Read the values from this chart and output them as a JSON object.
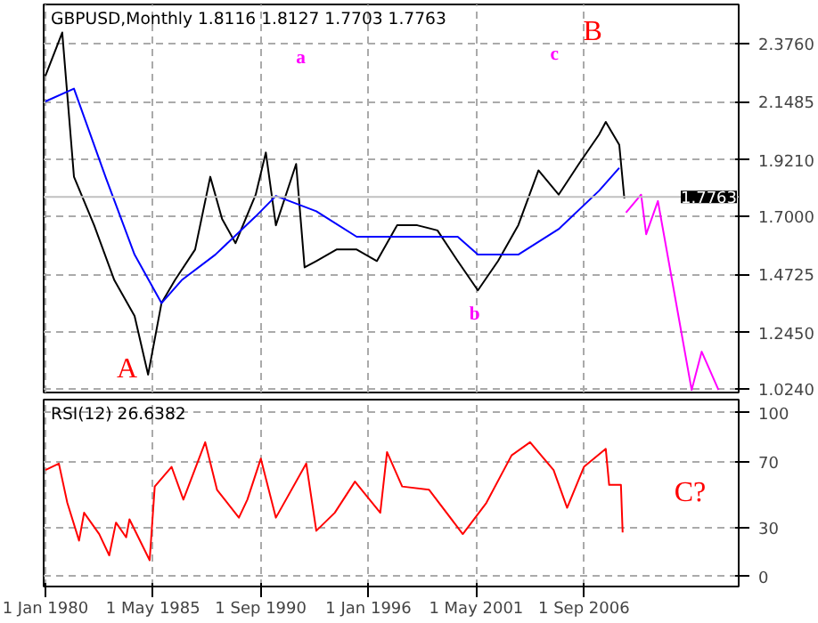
{
  "chart_data": [
    {
      "type": "line",
      "title": "GBPUSD,Monthly  1.8116 1.8127 1.7703 1.7763",
      "x": [
        "1980-01",
        "1980-11",
        "1981-06",
        "1982-06",
        "1983-06",
        "1984-06",
        "1985-02",
        "1985-10",
        "1986-06",
        "1987-06",
        "1988-03",
        "1988-10",
        "1989-06",
        "1990-06",
        "1990-12",
        "1991-06",
        "1992-06",
        "1992-11",
        "1993-06",
        "1994-06",
        "1995-06",
        "1996-06",
        "1997-06",
        "1998-06",
        "1999-06",
        "2000-06",
        "2001-06",
        "2002-06",
        "2003-06",
        "2004-06",
        "2005-06",
        "2006-06",
        "2007-06",
        "2007-10",
        "2008-06",
        "2008-09"
      ],
      "series": [
        {
          "color": "#000000",
          "values": [
            2.25,
            2.42,
            1.855,
            1.665,
            1.45,
            1.31,
            1.08,
            1.36,
            1.45,
            1.57,
            1.855,
            1.69,
            1.595,
            1.785,
            1.95,
            1.665,
            1.905,
            1.5,
            1.525,
            1.57,
            1.57,
            1.525,
            1.665,
            1.665,
            1.645,
            1.525,
            1.41,
            1.525,
            1.665,
            1.88,
            1.785,
            1.905,
            2.02,
            2.07,
            1.98,
            1.77
          ]
        },
        {
          "color": "#0000ff",
          "x": [
            "1980-01",
            "1981-06",
            "1983-01",
            "1984-06",
            "1985-10",
            "1986-10",
            "1988-06",
            "1990-06",
            "1991-06",
            "1993-06",
            "1995-06",
            "1998-06",
            "2000-06",
            "2001-06",
            "2003-06",
            "2005-06",
            "2007-06",
            "2008-06"
          ],
          "values": [
            2.15,
            2.2,
            1.85,
            1.55,
            1.36,
            1.45,
            1.55,
            1.7,
            1.78,
            1.72,
            1.62,
            1.62,
            1.62,
            1.55,
            1.55,
            1.65,
            1.8,
            1.89
          ]
        },
        {
          "color": "#ff00ff",
          "x": [
            "2008-10",
            "2009-07",
            "2009-10",
            "2010-05",
            "2012-01",
            "2012-07",
            "2013-05"
          ],
          "values": [
            1.715,
            1.785,
            1.63,
            1.76,
            1.02,
            1.17,
            1.02
          ]
        }
      ],
      "xlim": [
        "1979-12",
        "2014-05"
      ],
      "xticks": [
        {
          "value": "1980-01-01",
          "label": null
        },
        {
          "value": "1985-05-01",
          "label": null
        },
        {
          "value": "1990-09-01",
          "label": null
        },
        {
          "value": "1996-01-01",
          "label": null
        },
        {
          "value": "2001-05-01",
          "label": null
        },
        {
          "value": "2006-09-01",
          "label": null
        }
      ],
      "ylim": [
        1.01,
        2.53
      ],
      "yticks": [
        {
          "value": 1.024,
          "label": "1.0240"
        },
        {
          "value": 1.245,
          "label": "1.2450"
        },
        {
          "value": 1.4725,
          "label": "1.4725"
        },
        {
          "value": 1.7,
          "label": "1.7000"
        },
        {
          "value": 1.921,
          "label": "1.9210"
        },
        {
          "value": 2.1485,
          "label": "2.1485"
        },
        {
          "value": 2.376,
          "label": "2.3760"
        }
      ],
      "ref_lines": [
        {
          "axis": "y",
          "value": 1.7763,
          "label": "1.7763",
          "color": "#c0c0c0"
        }
      ],
      "annotations": [
        "A",
        "a",
        "b",
        "B",
        "c"
      ],
      "grid": true,
      "tick_labels": "y"
    },
    {
      "type": "line",
      "title": "RSI(12) 26.6382",
      "x": [
        "1980-01",
        "1980-09",
        "1981-02",
        "1981-09",
        "1981-12",
        "1982-09",
        "1983-03",
        "1983-07",
        "1984-01",
        "1984-03",
        "1985-03",
        "1985-06",
        "1986-04",
        "1986-11",
        "1987-12",
        "1988-07",
        "1989-08",
        "1990-01",
        "1990-09",
        "1991-06",
        "1992-12",
        "1993-06",
        "1994-05",
        "1995-05",
        "1996-08",
        "1996-12",
        "1997-09",
        "1999-01",
        "2000-09",
        "2001-11",
        "2003-02",
        "2004-01",
        "2005-03",
        "2005-11",
        "2006-09",
        "2007-10",
        "2007-12",
        "2008-07",
        "2008-08"
      ],
      "series": [
        {
          "color": "#ff0000",
          "values": [
            65,
            69,
            45,
            22,
            39,
            26,
            13,
            33,
            24,
            35,
            10,
            55,
            67,
            47,
            82,
            53,
            36,
            47,
            72,
            36,
            69,
            28,
            39,
            58,
            39,
            76,
            55,
            53,
            26,
            45,
            74,
            82,
            65,
            42,
            67,
            78,
            56,
            56,
            27
          ]
        }
      ],
      "xlim": [
        "1979-12",
        "2014-05"
      ],
      "xticks": [
        {
          "value": "1980-01-01",
          "label": "1 Jan 1980"
        },
        {
          "value": "1985-05-01",
          "label": "1 May 1985"
        },
        {
          "value": "1990-09-01",
          "label": "1 Sep 1990"
        },
        {
          "value": "1996-01-01",
          "label": "1 Jan 1996"
        },
        {
          "value": "2001-05-01",
          "label": "1 May 2001"
        },
        {
          "value": "2006-09-01",
          "label": "1 Sep 2006"
        }
      ],
      "ylim": [
        -6,
        108
      ],
      "yticks": [
        0,
        30,
        70,
        100
      ],
      "annotations": [
        "C?"
      ],
      "grid": true
    }
  ]
}
